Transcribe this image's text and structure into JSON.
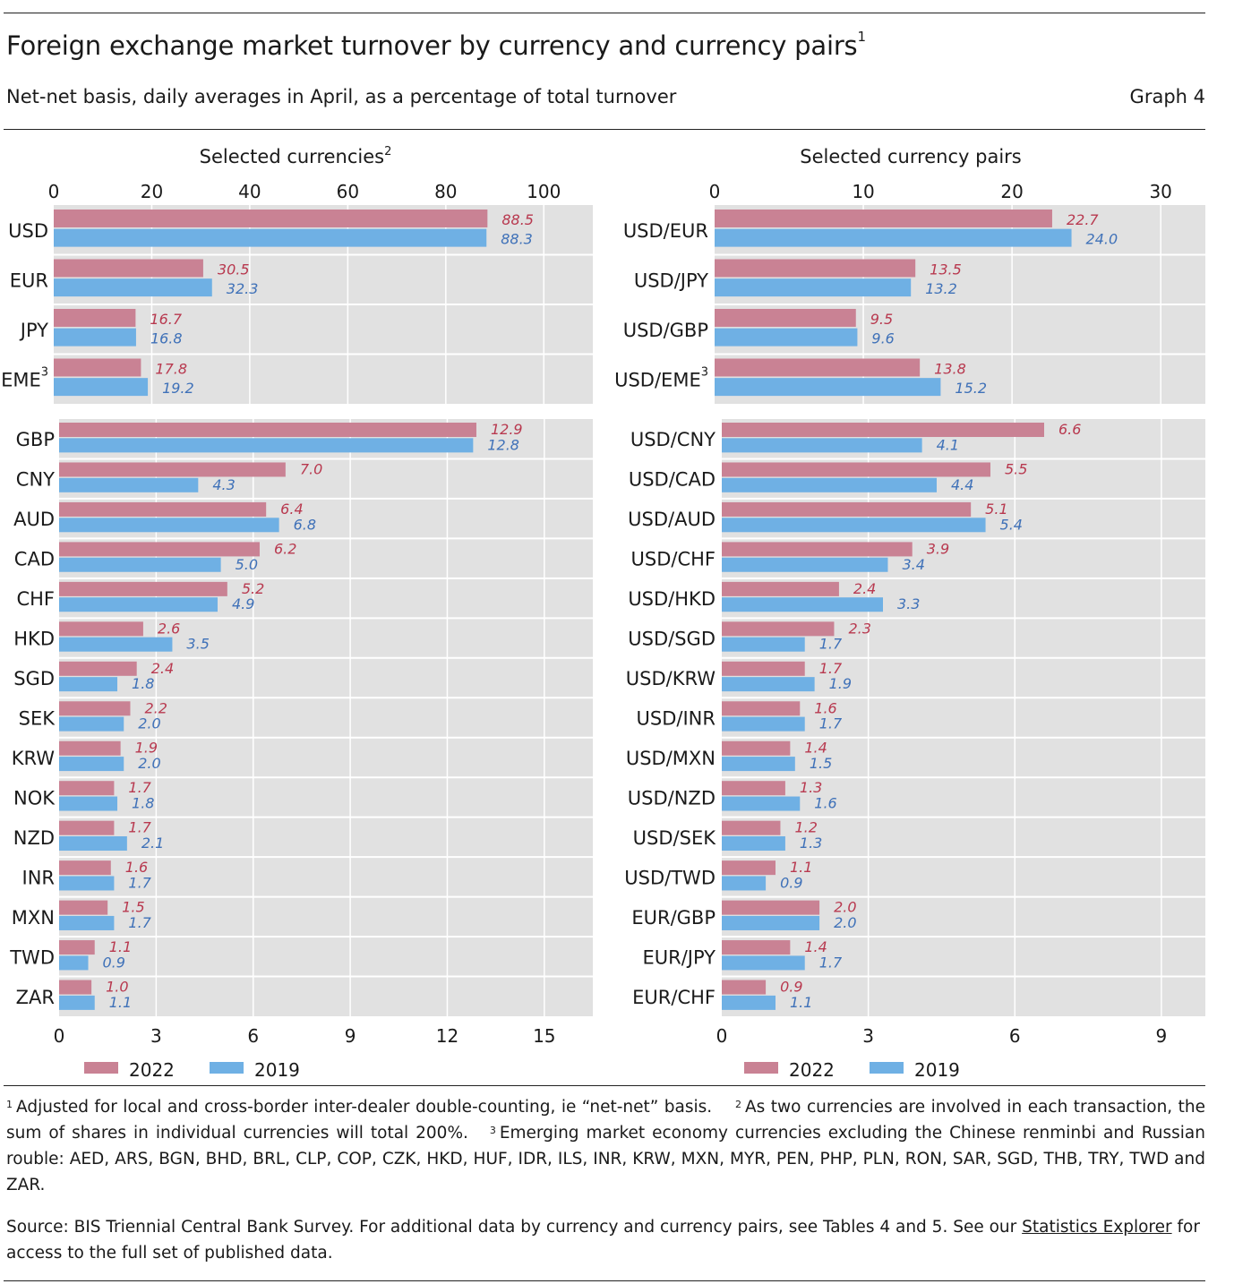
{
  "header": {
    "title": "Foreign exchange market turnover by currency and currency pairs",
    "title_note": "1",
    "subtitle": "Net-net basis, daily averages in April, as a percentage of total turnover",
    "graph_label": "Graph 4"
  },
  "colors": {
    "s2022": "#c98294",
    "s2019": "#6fb0e4",
    "panel_bg": "#e1e1e1",
    "grid": "#ffffff",
    "label_2022": "#b8394f",
    "label_2019": "#3f71b8"
  },
  "chart_data": [
    {
      "type": "bar",
      "orientation": "horizontal",
      "title": "Selected currencies",
      "title_note": "2",
      "legend": {
        "position": "bottom",
        "entries": [
          "2022",
          "2019"
        ]
      },
      "grid": true,
      "panels": [
        {
          "axis_position": "top",
          "xlim": [
            0,
            110
          ],
          "ticks": [
            0,
            20,
            40,
            60,
            80,
            100
          ],
          "categories": [
            "USD",
            "EUR",
            "JPY",
            "EME"
          ],
          "category_notes": [
            "",
            "",
            "",
            "3"
          ],
          "series": [
            {
              "name": "2022",
              "values": [
                88.5,
                30.5,
                16.7,
                17.8
              ]
            },
            {
              "name": "2019",
              "values": [
                88.3,
                32.3,
                16.8,
                19.2
              ]
            }
          ]
        },
        {
          "axis_position": "bottom",
          "xlim": [
            0,
            16.5
          ],
          "ticks": [
            0,
            3,
            6,
            9,
            12,
            15
          ],
          "categories": [
            "GBP",
            "CNY",
            "AUD",
            "CAD",
            "CHF",
            "HKD",
            "SGD",
            "SEK",
            "KRW",
            "NOK",
            "NZD",
            "INR",
            "MXN",
            "TWD",
            "ZAR"
          ],
          "category_notes": [
            "",
            "",
            "",
            "",
            "",
            "",
            "",
            "",
            "",
            "",
            "",
            "",
            "",
            "",
            ""
          ],
          "series": [
            {
              "name": "2022",
              "values": [
                12.9,
                7.0,
                6.4,
                6.2,
                5.2,
                2.6,
                2.4,
                2.2,
                1.9,
                1.7,
                1.7,
                1.6,
                1.5,
                1.1,
                1.0
              ]
            },
            {
              "name": "2019",
              "values": [
                12.8,
                4.3,
                6.8,
                5.0,
                4.9,
                3.5,
                1.8,
                2.0,
                2.0,
                1.8,
                2.1,
                1.7,
                1.7,
                0.9,
                1.1
              ]
            }
          ]
        }
      ]
    },
    {
      "type": "bar",
      "orientation": "horizontal",
      "title": "Selected currency pairs",
      "title_note": "",
      "legend": {
        "position": "bottom",
        "entries": [
          "2022",
          "2019"
        ]
      },
      "grid": true,
      "panels": [
        {
          "axis_position": "top",
          "xlim": [
            0,
            33
          ],
          "ticks": [
            0,
            10,
            20,
            30
          ],
          "categories": [
            "USD/EUR",
            "USD/JPY",
            "USD/GBP",
            "USD/EME"
          ],
          "category_notes": [
            "",
            "",
            "",
            "3"
          ],
          "series": [
            {
              "name": "2022",
              "values": [
                22.7,
                13.5,
                9.5,
                13.8
              ]
            },
            {
              "name": "2019",
              "values": [
                24.0,
                13.2,
                9.6,
                15.2
              ]
            }
          ]
        },
        {
          "axis_position": "bottom",
          "xlim": [
            0,
            9.9
          ],
          "ticks": [
            0,
            3,
            6,
            9
          ],
          "categories": [
            "USD/CNY",
            "USD/CAD",
            "USD/AUD",
            "USD/CHF",
            "USD/HKD",
            "USD/SGD",
            "USD/KRW",
            "USD/INR",
            "USD/MXN",
            "USD/NZD",
            "USD/SEK",
            "USD/TWD",
            "EUR/GBP",
            "EUR/JPY",
            "EUR/CHF"
          ],
          "category_notes": [
            "",
            "",
            "",
            "",
            "",
            "",
            "",
            "",
            "",
            "",
            "",
            "",
            "",
            "",
            ""
          ],
          "series": [
            {
              "name": "2022",
              "values": [
                6.6,
                5.5,
                5.1,
                3.9,
                2.4,
                2.3,
                1.7,
                1.6,
                1.4,
                1.3,
                1.2,
                1.1,
                2.0,
                1.4,
                0.9
              ]
            },
            {
              "name": "2019",
              "values": [
                4.1,
                4.4,
                5.4,
                3.4,
                3.3,
                1.7,
                1.9,
                1.7,
                1.5,
                1.6,
                1.3,
                0.9,
                2.0,
                1.7,
                1.1
              ]
            }
          ]
        }
      ]
    }
  ],
  "footnotes": {
    "n1_mark": "1",
    "n1": "Adjusted for local and cross-border inter-dealer double-counting, ie “net-net” basis.",
    "n2_mark": "2",
    "n2": "As two currencies are involved in each transaction, the sum of shares in individual currencies will total 200%.",
    "n3_mark": "3",
    "n3": "Emerging market economy currencies excluding the Chinese renminbi and Russian rouble: AED, ARS, BGN, BHD, BRL, CLP, COP, CZK, HKD, HUF, IDR, ILS, INR, KRW, MXN, MYR, PEN, PHP, PLN, RON, SAR, SGD, THB, TRY, TWD and ZAR."
  },
  "source": {
    "text_before": "Source: BIS Triennial Central Bank Survey. For additional data by currency and currency pairs, see Tables 4 and 5. See our ",
    "link_text": "Statistics Explorer",
    "text_after": " for access to the full set of published data."
  }
}
